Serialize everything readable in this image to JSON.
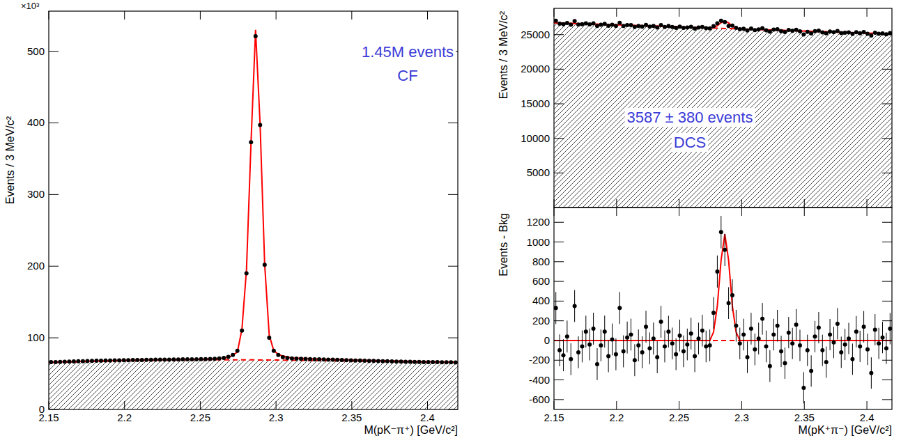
{
  "chart_data": [
    {
      "type": "scatter",
      "x_label": "M(pK⁻π⁺) [GeV/c²]",
      "y_label": "Events / 3 MeV/c²",
      "y_multiplier": "×10³",
      "annotations": [
        "1.45M events",
        "CF"
      ],
      "xlim": [
        2.15,
        2.42
      ],
      "ylim": [
        0,
        556
      ],
      "xticks": [
        2.15,
        2.2,
        2.25,
        2.3,
        2.35,
        2.4
      ],
      "yticks": [
        0,
        100,
        200,
        300,
        400,
        500
      ],
      "grid": false,
      "series": [
        {
          "type": "area",
          "color": "#ff0000",
          "line_style": "dashed",
          "x": [
            2.15,
            2.2,
            2.25,
            2.3,
            2.35,
            2.42
          ],
          "values": [
            65.5,
            68,
            69.5,
            69,
            67.5,
            65.5
          ]
        },
        {
          "type": "line",
          "color": "#ff0000",
          "line_style": "solid",
          "x": [
            2.15,
            2.17,
            2.19,
            2.21,
            2.23,
            2.25,
            2.26,
            2.265,
            2.27,
            2.2745,
            2.2775,
            2.2805,
            2.2835,
            2.2865,
            2.2895,
            2.2925,
            2.2955,
            2.2985,
            2.302,
            2.31,
            2.33,
            2.35,
            2.37,
            2.39,
            2.42
          ],
          "values": [
            66,
            67,
            68,
            69,
            69.5,
            70,
            70.6,
            71.5,
            74,
            80,
            112,
            195,
            372,
            530,
            398,
            203,
            104,
            82,
            76,
            72,
            70.2,
            69,
            68,
            67,
            66
          ]
        },
        {
          "type": "scatter",
          "color": "#000000",
          "marker": "circle",
          "x": [
            2.1515,
            2.1545,
            2.1575,
            2.1605,
            2.1635,
            2.1665,
            2.1695,
            2.1725,
            2.1755,
            2.1785,
            2.1815,
            2.1845,
            2.1875,
            2.1905,
            2.1935,
            2.1965,
            2.1995,
            2.2025,
            2.2055,
            2.2085,
            2.2115,
            2.2145,
            2.2175,
            2.2205,
            2.2235,
            2.2265,
            2.2295,
            2.2325,
            2.2355,
            2.2385,
            2.2415,
            2.2445,
            2.2475,
            2.2505,
            2.2535,
            2.2565,
            2.2595,
            2.2625,
            2.2655,
            2.2685,
            2.2715,
            2.2745,
            2.2775,
            2.2805,
            2.2835,
            2.2865,
            2.2895,
            2.2925,
            2.2955,
            2.2985,
            2.3015,
            2.3045,
            2.3075,
            2.3105,
            2.3135,
            2.3165,
            2.3195,
            2.3225,
            2.3255,
            2.3285,
            2.3315,
            2.3345,
            2.3375,
            2.3405,
            2.3435,
            2.3465,
            2.3495,
            2.3525,
            2.3555,
            2.3585,
            2.3615,
            2.3645,
            2.3675,
            2.3705,
            2.3735,
            2.3765,
            2.3795,
            2.3825,
            2.3855,
            2.3885,
            2.3915,
            2.3945,
            2.3975,
            2.4005,
            2.4035,
            2.4065,
            2.4095,
            2.4125,
            2.4155,
            2.4185
          ],
          "values": [
            66,
            66.2,
            66.4,
            66.6,
            66.8,
            67,
            67.2,
            67.4,
            67.6,
            67.8,
            68,
            68.1,
            68.2,
            68.4,
            68.5,
            68.6,
            68.7,
            68.8,
            68.9,
            69,
            69.1,
            69.2,
            69.3,
            69.4,
            69.5,
            69.5,
            69.6,
            69.7,
            69.8,
            69.9,
            70,
            70,
            70.1,
            70.2,
            70.3,
            70.5,
            70.8,
            71.2,
            72,
            73.5,
            76,
            82,
            110,
            190,
            373,
            521,
            397,
            202,
            100,
            82,
            76,
            73,
            72,
            71.3,
            71,
            70.6,
            70.4,
            70.2,
            70,
            69.9,
            69.8,
            69.6,
            69.4,
            69.2,
            69,
            68.8,
            68.6,
            68.4,
            68.2,
            68,
            67.8,
            67.7,
            67.5,
            67.4,
            67.2,
            67,
            66.9,
            66.8,
            66.6,
            66.5,
            66.4,
            66.3,
            66.2,
            66.1,
            66,
            66,
            65.9,
            65.8,
            65.8,
            65.7
          ]
        }
      ]
    },
    {
      "type": "scatter",
      "y_label": "Events / 3 MeV/c²",
      "annotations": [
        "3587 ± 380 events",
        "DCS"
      ],
      "xlim": [
        2.15,
        2.42
      ],
      "ylim": [
        0,
        28800
      ],
      "xticks": [
        2.15,
        2.2,
        2.25,
        2.3,
        2.35,
        2.4
      ],
      "yticks": [
        5000,
        10000,
        15000,
        20000,
        25000
      ],
      "tick_labels": "y",
      "grid": false,
      "series": [
        {
          "type": "area",
          "color": "#ff0000",
          "line_style": "dashed",
          "x": [
            2.15,
            2.42
          ],
          "values": [
            26700,
            25100
          ]
        },
        {
          "type": "line",
          "color": "#ff0000",
          "line_style": "solid",
          "x": [
            2.15,
            2.2745,
            2.2775,
            2.2805,
            2.2835,
            2.2865,
            2.2895,
            2.2925,
            2.2955,
            2.2985,
            2.42
          ],
          "values": [
            26700,
            25970,
            26038,
            26286,
            26732,
            26979,
            26696,
            26214,
            25932,
            25828,
            25100
          ]
        },
        {
          "type": "scatter",
          "color": "#000000",
          "marker": "circle",
          "x": [
            2.1515,
            2.1545,
            2.1575,
            2.1605,
            2.1635,
            2.1665,
            2.1695,
            2.1725,
            2.1755,
            2.1785,
            2.1815,
            2.1845,
            2.1875,
            2.1905,
            2.1935,
            2.1965,
            2.1995,
            2.2025,
            2.2055,
            2.2085,
            2.2115,
            2.2145,
            2.2175,
            2.2205,
            2.2235,
            2.2265,
            2.2295,
            2.2325,
            2.2355,
            2.2385,
            2.2415,
            2.2445,
            2.2475,
            2.2505,
            2.2535,
            2.2565,
            2.2595,
            2.2625,
            2.2655,
            2.2685,
            2.2715,
            2.2745,
            2.2775,
            2.2805,
            2.2835,
            2.2865,
            2.2895,
            2.2925,
            2.2955,
            2.2985,
            2.3015,
            2.3045,
            2.3075,
            2.3105,
            2.3135,
            2.3165,
            2.3195,
            2.3225,
            2.3255,
            2.3285,
            2.3315,
            2.3345,
            2.3375,
            2.3405,
            2.3435,
            2.3465,
            2.3495,
            2.3525,
            2.3555,
            2.3585,
            2.3615,
            2.3645,
            2.3675,
            2.3705,
            2.3735,
            2.3765,
            2.3795,
            2.3825,
            2.3855,
            2.3885,
            2.3915,
            2.3945,
            2.3975,
            2.4005,
            2.4035,
            2.4065,
            2.4095,
            2.4125,
            2.4155,
            2.4185
          ],
          "values": [
            27021,
            26573,
            26505,
            26678,
            26430,
            26952,
            26464,
            26506,
            26639,
            26491,
            26633,
            26255,
            26427,
            26550,
            26282,
            26434,
            26266,
            26718,
            26261,
            26383,
            26395,
            26117,
            26249,
            26162,
            26404,
            26166,
            26248,
            26040,
            26383,
            26115,
            26247,
            26109,
            25981,
            26154,
            25976,
            26028,
            26120,
            25872,
            26035,
            26097,
            25919,
            25911,
            26223,
            26626,
            27008,
            26810,
            26252,
            26314,
            25987,
            25789,
            25861,
            25613,
            25885,
            25658,
            25750,
            25932,
            25634,
            25416,
            25719,
            25791,
            25513,
            25375,
            25667,
            25540,
            25712,
            25484,
            25036,
            25398,
            25171,
            25503,
            25575,
            25327,
            25189,
            25452,
            25354,
            25526,
            25218,
            25280,
            25323,
            25095,
            25357,
            25189,
            25371,
            25124,
            24866,
            25288,
            25130,
            25172,
            25045,
            25227
          ]
        }
      ]
    },
    {
      "type": "scatter",
      "x_label": "M(pK⁺π⁻) [GeV/c²]",
      "y_label": "Events - Bkg",
      "xlim": [
        2.15,
        2.42
      ],
      "ylim": [
        -700,
        1350
      ],
      "xticks": [
        2.15,
        2.2,
        2.25,
        2.3,
        2.35,
        2.4
      ],
      "yticks": [
        -600,
        -400,
        -200,
        0,
        200,
        400,
        600,
        800,
        1000,
        1200
      ],
      "grid": false,
      "series": [
        {
          "type": "line",
          "color": "#ff0000",
          "line_style": "dashed",
          "x": [
            2.15,
            2.42
          ],
          "values": [
            0,
            0
          ]
        },
        {
          "type": "line",
          "color": "#ff0000",
          "line_style": "solid",
          "x": [
            2.15,
            2.2745,
            2.2775,
            2.2805,
            2.2835,
            2.2865,
            2.2895,
            2.2925,
            2.2955,
            2.2985,
            2.42
          ],
          "values": [
            0,
            0,
            86,
            351,
            815,
            1080,
            815,
            351,
            86,
            0,
            0
          ]
        },
        {
          "type": "scatter",
          "color": "#000000",
          "marker": "circle",
          "x": [
            2.1515,
            2.1545,
            2.1575,
            2.1605,
            2.1635,
            2.1665,
            2.1695,
            2.1725,
            2.1755,
            2.1785,
            2.1815,
            2.1845,
            2.1875,
            2.1905,
            2.1935,
            2.1965,
            2.1995,
            2.2025,
            2.2055,
            2.2085,
            2.2115,
            2.2145,
            2.2175,
            2.2205,
            2.2235,
            2.2265,
            2.2295,
            2.2325,
            2.2355,
            2.2385,
            2.2415,
            2.2445,
            2.2475,
            2.2505,
            2.2535,
            2.2565,
            2.2595,
            2.2625,
            2.2655,
            2.2685,
            2.2715,
            2.2745,
            2.2775,
            2.2805,
            2.2835,
            2.2865,
            2.2895,
            2.2925,
            2.2955,
            2.2985,
            2.3015,
            2.3045,
            2.3075,
            2.3105,
            2.3135,
            2.3165,
            2.3195,
            2.3225,
            2.3255,
            2.3285,
            2.3315,
            2.3345,
            2.3375,
            2.3405,
            2.3435,
            2.3465,
            2.3495,
            2.3525,
            2.3555,
            2.3585,
            2.3615,
            2.3645,
            2.3675,
            2.3705,
            2.3735,
            2.3765,
            2.3795,
            2.3825,
            2.3855,
            2.3885,
            2.3915,
            2.3945,
            2.3975,
            2.4005,
            2.4035,
            2.4065,
            2.4095,
            2.4125,
            2.4155,
            2.4185
          ],
          "values": [
            330,
            -100,
            -150,
            40,
            -190,
            350,
            -120,
            -60,
            90,
            -40,
            120,
            -240,
            -50,
            90,
            -160,
            10,
            -140,
            330,
            -110,
            30,
            60,
            -200,
            -50,
            -120,
            140,
            -80,
            20,
            -170,
            190,
            -60,
            90,
            -30,
            -140,
            50,
            -110,
            -40,
            70,
            -160,
            20,
            100,
            -60,
            -50,
            280,
            700,
            1100,
            920,
            380,
            460,
            150,
            -30,
            60,
            -170,
            120,
            -90,
            20,
            220,
            -60,
            -260,
            60,
            150,
            -110,
            -230,
            80,
            -30,
            160,
            -50,
            -480,
            -100,
            -310,
            40,
            130,
            -100,
            -220,
            60,
            -20,
            170,
            -120,
            -40,
            20,
            -190,
            90,
            -60,
            140,
            -90,
            -330,
            110,
            -30,
            30,
            -80,
            120
          ],
          "errors": [
            162,
            162,
            162,
            162,
            162,
            162,
            162,
            162,
            162,
            162,
            162,
            162,
            162,
            162,
            162,
            162,
            162,
            162,
            162,
            162,
            162,
            162,
            162,
            162,
            162,
            162,
            162,
            162,
            162,
            162,
            161,
            161,
            161,
            161,
            161,
            161,
            161,
            161,
            161,
            161,
            161,
            161,
            161,
            163,
            165,
            164,
            161,
            161,
            161,
            161,
            161,
            161,
            161,
            161,
            161,
            161,
            161,
            161,
            161,
            161,
            159,
            159,
            159,
            159,
            159,
            159,
            159,
            159,
            159,
            159,
            159,
            159,
            159,
            159,
            159,
            159,
            159,
            159,
            159,
            159,
            159,
            159,
            159,
            159,
            159,
            159,
            159,
            159,
            159,
            159
          ]
        }
      ]
    }
  ]
}
